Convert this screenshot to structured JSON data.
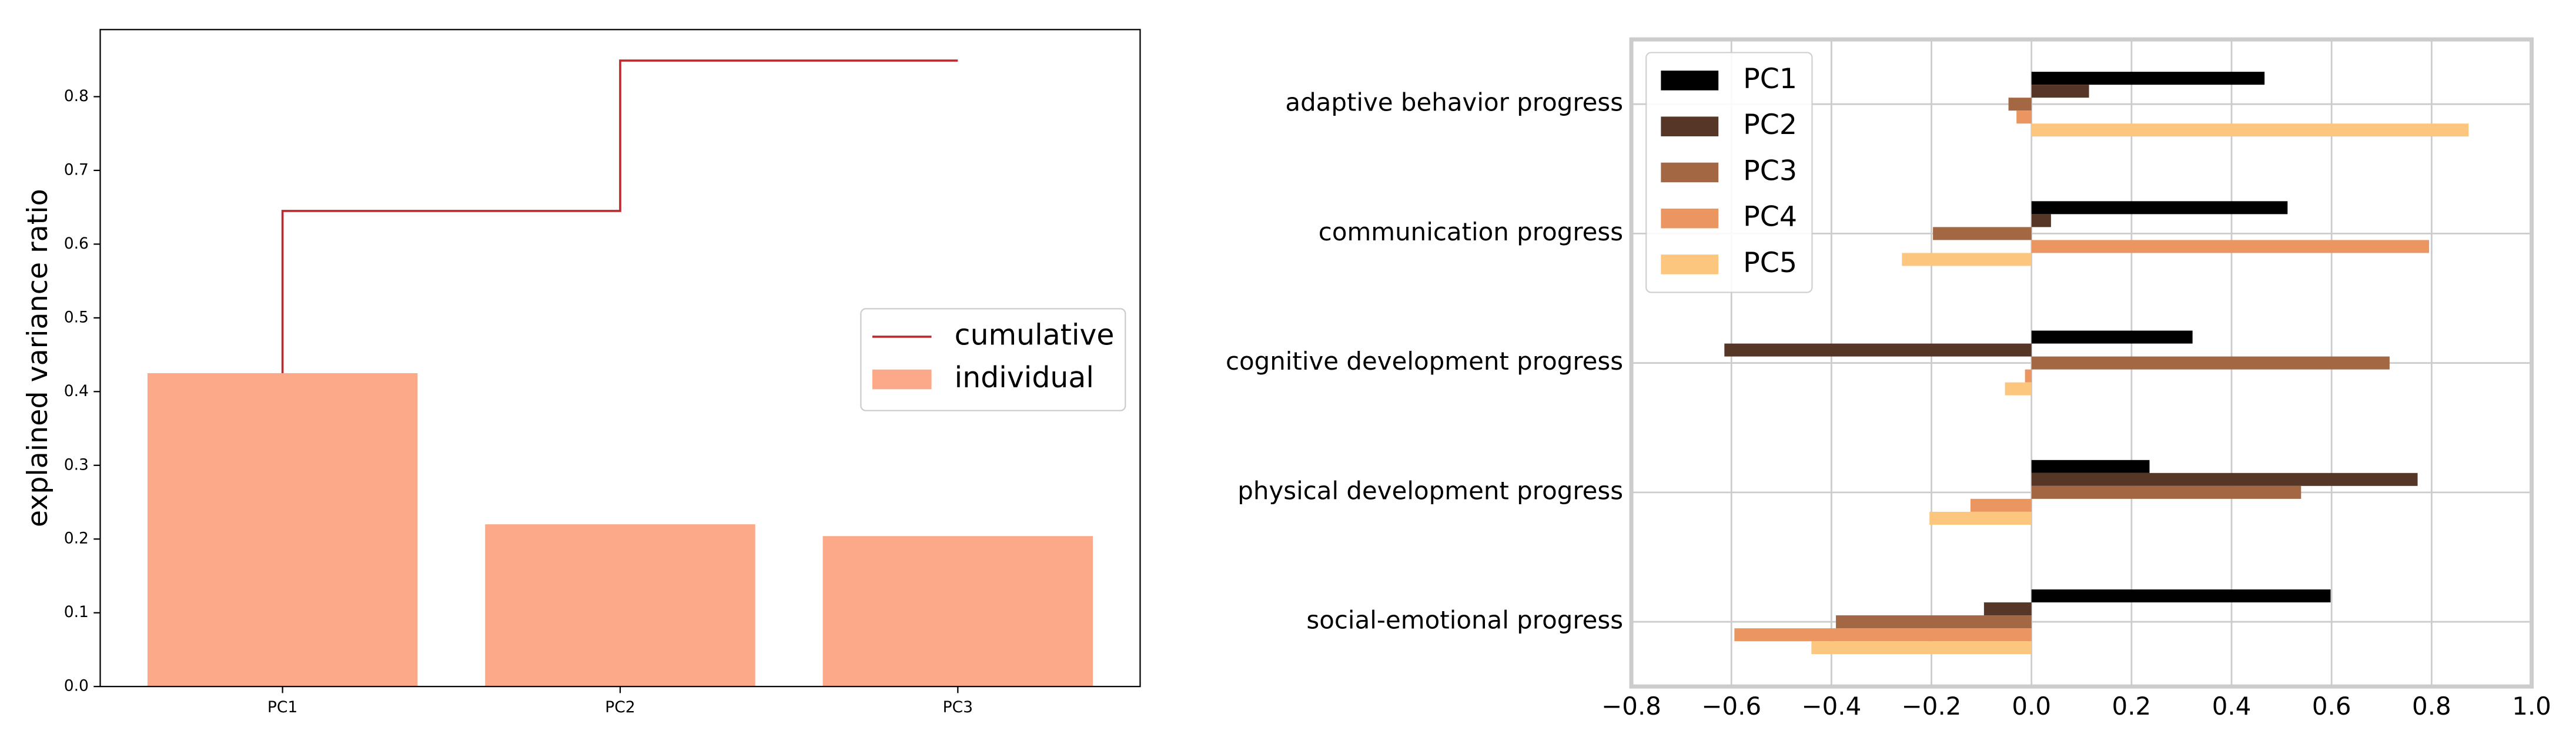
{
  "chart_data": [
    {
      "type": "bar",
      "categories": [
        "PC1",
        "PC2",
        "PC3"
      ],
      "ylabel": "explained variance ratio",
      "series": [
        {
          "name": "cumulative",
          "type": "step",
          "color": "#c0282d",
          "values": [
            0.425,
            0.645,
            0.849
          ]
        },
        {
          "name": "individual",
          "color": "#fca98a",
          "values": [
            0.425,
            0.22,
            0.204
          ]
        }
      ],
      "ylim": [
        0,
        0.891
      ],
      "yticks": [
        {
          "value": 0,
          "label": "0.0"
        },
        0.1,
        0.2,
        0.3,
        0.4,
        0.5,
        0.6,
        0.7,
        0.8
      ],
      "legend": "center right",
      "grid": false
    },
    {
      "type": "barh",
      "categories": [
        "adaptive behavior progress",
        "communication progress",
        "cognitive development progress",
        "physical development progress",
        "social-emotional progress"
      ],
      "series": [
        {
          "name": "PC1",
          "color": "#000000",
          "values": [
            0.466,
            0.512,
            0.322,
            0.236,
            0.598
          ]
        },
        {
          "name": "PC2",
          "color": "#553627",
          "values": [
            0.115,
            0.039,
            -0.614,
            0.772,
            -0.095
          ]
        },
        {
          "name": "PC3",
          "color": "#a36843",
          "values": [
            -0.046,
            -0.197,
            0.716,
            0.539,
            -0.391
          ]
        },
        {
          "name": "PC4",
          "color": "#eb9660",
          "values": [
            -0.03,
            0.795,
            -0.013,
            -0.122,
            -0.594
          ]
        },
        {
          "name": "PC5",
          "color": "#fdc67e",
          "values": [
            0.874,
            -0.259,
            -0.053,
            -0.204,
            -0.44
          ]
        }
      ],
      "xlim": [
        -0.8,
        1.0
      ],
      "xticks": [
        {
          "value": -0.8,
          "label": "−0.8"
        },
        {
          "value": -0.6,
          "label": "−0.6"
        },
        {
          "value": -0.4,
          "label": "−0.4"
        },
        {
          "value": -0.2,
          "label": "−0.2"
        },
        {
          "value": 0,
          "label": "0.0"
        },
        0.2,
        0.4,
        0.6,
        0.8,
        {
          "value": 1,
          "label": "1.0"
        }
      ],
      "legend": "upper left",
      "grid": true
    }
  ]
}
